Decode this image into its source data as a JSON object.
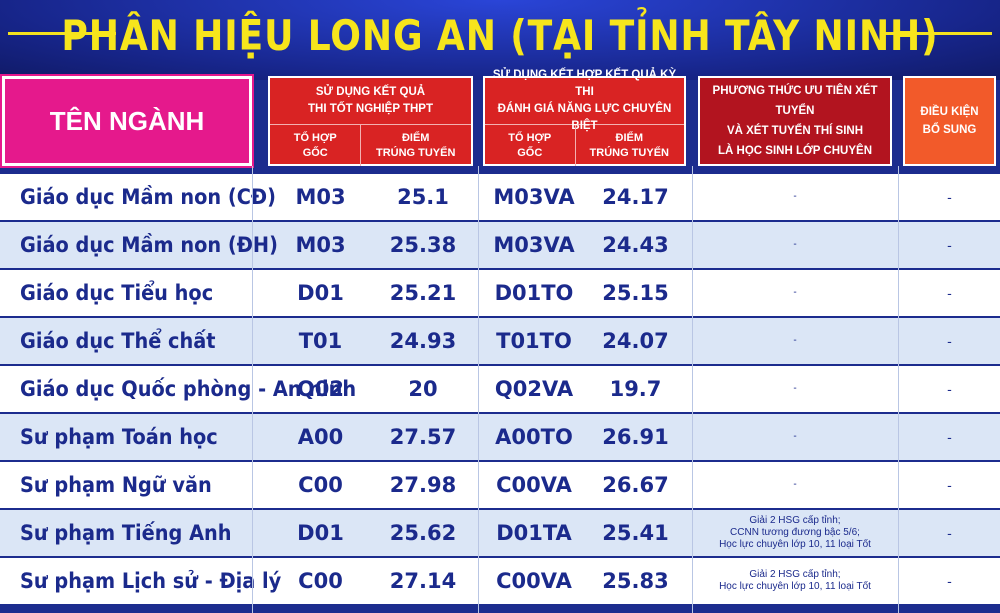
{
  "title": "PHÂN HIỆU LONG AN (TẠI TỈNH TÂY NINH)",
  "headers": {
    "major": "TÊN NGÀNH",
    "group1": {
      "title_line1": "SỬ DỤNG KẾT QUẢ",
      "title_line2": "THI TỐT NGHIỆP THPT",
      "sub_code_line1": "TỔ HỢP",
      "sub_code_line2": "GỐC",
      "sub_score_line1": "ĐIỂM",
      "sub_score_line2": "TRÚNG TUYỂN"
    },
    "group2": {
      "title_line1": "SỬ DỤNG KẾT HỢP KẾT QUẢ KỲ THI",
      "title_line2": "ĐÁNH GIÁ NĂNG LỰC CHUYÊN BIỆT",
      "sub_code_line1": "TỔ HỢP",
      "sub_code_line2": "GỐC",
      "sub_score_line1": "ĐIỂM",
      "sub_score_line2": "TRÚNG TUYỂN"
    },
    "method_line1": "PHƯƠNG THỨC ƯU TIÊN XÉT TUYỂN",
    "method_line2": "VÀ XÉT TUYỂN THÍ SINH",
    "method_line3": "LÀ HỌC SINH LỚP CHUYÊN",
    "extra_line1": "ĐIỀU KIỆN",
    "extra_line2": "BỔ SUNG"
  },
  "rows": [
    {
      "name": "Giáo dục Mầm non  (CĐ)",
      "code1": "M03",
      "score1": "25.1",
      "code2": "M03VA",
      "score2": "24.17",
      "method_l1": "-",
      "method_l2": "",
      "method_l3": "",
      "extra": "-"
    },
    {
      "name": "Giáo dục Mầm non  (ĐH)",
      "code1": "M03",
      "score1": "25.38",
      "code2": "M03VA",
      "score2": "24.43",
      "method_l1": "-",
      "method_l2": "",
      "method_l3": "",
      "extra": "-"
    },
    {
      "name": "Giáo dục Tiểu học",
      "code1": "D01",
      "score1": "25.21",
      "code2": "D01TO",
      "score2": "25.15",
      "method_l1": "-",
      "method_l2": "",
      "method_l3": "",
      "extra": "-"
    },
    {
      "name": "Giáo dục Thể chất",
      "code1": "T01",
      "score1": "24.93",
      "code2": "T01TO",
      "score2": "24.07",
      "method_l1": "-",
      "method_l2": "",
      "method_l3": "",
      "extra": "-"
    },
    {
      "name": "Giáo dục Quốc phòng - An ninh",
      "code1": "Q02",
      "score1": "20",
      "code2": "Q02VA",
      "score2": "19.7",
      "method_l1": "-",
      "method_l2": "",
      "method_l3": "",
      "extra": "-"
    },
    {
      "name": "Sư phạm Toán học",
      "code1": "A00",
      "score1": "27.57",
      "code2": "A00TO",
      "score2": "26.91",
      "method_l1": "-",
      "method_l2": "",
      "method_l3": "",
      "extra": "-"
    },
    {
      "name": "Sư phạm Ngữ văn",
      "code1": "C00",
      "score1": "27.98",
      "code2": "C00VA",
      "score2": "26.67",
      "method_l1": "-",
      "method_l2": "",
      "method_l3": "",
      "extra": "-"
    },
    {
      "name": "Sư phạm Tiếng Anh",
      "code1": "D01",
      "score1": "25.62",
      "code2": "D01TA",
      "score2": "25.41",
      "method_l1": "Giải 2 HSG cấp tỉnh;",
      "method_l2": "CCNN tương đương bậc 5/6;",
      "method_l3": "Học lực chuyên lớp 10, 11 loại Tốt",
      "extra": "-"
    },
    {
      "name": "Sư phạm Lịch sử - Địa lý",
      "code1": "C00",
      "score1": "27.14",
      "code2": "C00VA",
      "score2": "25.83",
      "method_l1": "Giải 2 HSG cấp tỉnh;",
      "method_l2": "Học lực chuyên lớp 10, 11 loại Tốt",
      "method_l3": "",
      "extra": "-"
    }
  ]
}
